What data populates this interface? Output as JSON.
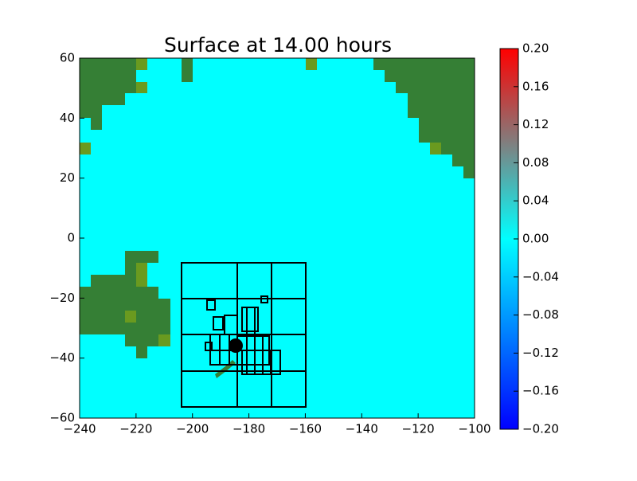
{
  "chart_data": {
    "type": "heatmap",
    "title": "Surface at 14.00 hours",
    "values": [
      [
        0
      ]
    ],
    "xlim": [
      -240,
      -100
    ],
    "xticks": [
      {
        "value": -240,
        "label": "−240"
      },
      {
        "value": -220,
        "label": "−220"
      },
      {
        "value": -200,
        "label": "−200"
      },
      {
        "value": -180,
        "label": "−180"
      },
      {
        "value": -160,
        "label": "−160"
      },
      {
        "value": -140,
        "label": "−140"
      },
      {
        "value": -120,
        "label": "−120"
      },
      {
        "value": -100,
        "label": "−100"
      }
    ],
    "ylim": [
      -60,
      60
    ],
    "yticks": [
      {
        "value": -60,
        "label": "−60"
      },
      {
        "value": -40,
        "label": "−40"
      },
      {
        "value": -20,
        "label": "−20"
      },
      0,
      20,
      40,
      60
    ],
    "colorbar": {
      "lim": [
        -0.2,
        0.2
      ],
      "colors": [
        "#0000ff",
        "#00ffff",
        "#ff0000"
      ],
      "ticks": [
        {
          "value": -0.2,
          "label": "−0.20"
        },
        {
          "value": -0.16,
          "label": "−0.16"
        },
        {
          "value": -0.12,
          "label": "−0.12"
        },
        {
          "value": -0.08,
          "label": "−0.08"
        },
        {
          "value": -0.04,
          "label": "−0.04"
        },
        {
          "value": 0,
          "label": "0.00"
        },
        {
          "value": 0.04,
          "label": "0.04"
        },
        {
          "value": 0.08,
          "label": "0.08"
        },
        {
          "value": 0.12,
          "label": "0.12"
        },
        {
          "value": 0.16,
          "label": "0.16"
        },
        {
          "value": 0.2,
          "label": "0.20"
        }
      ]
    },
    "land_color": "#357f35"
  }
}
